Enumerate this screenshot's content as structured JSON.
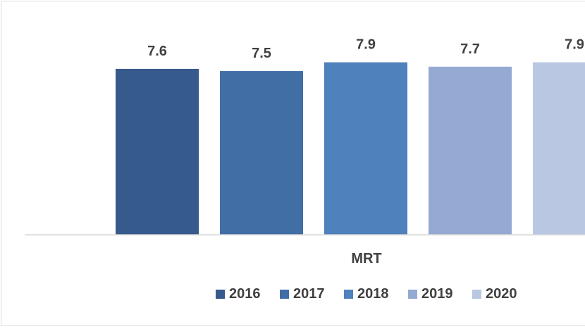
{
  "chart_data": {
    "type": "bar",
    "categories": [
      "MRT"
    ],
    "series": [
      {
        "name": "2016",
        "values": [
          7.6
        ],
        "color": "#375a8c"
      },
      {
        "name": "2017",
        "values": [
          7.5
        ],
        "color": "#426ea6"
      },
      {
        "name": "2018",
        "values": [
          7.9
        ],
        "color": "#4f81bd"
      },
      {
        "name": "2019",
        "values": [
          7.7
        ],
        "color": "#95aad2"
      },
      {
        "name": "2020",
        "values": [
          7.9
        ],
        "color": "#b9c7e2"
      }
    ],
    "data_labels": [
      "7.6",
      "7.5",
      "7.9",
      "7.7",
      "7.9"
    ],
    "ylim": [
      0,
      8.5
    ],
    "grid": false,
    "legend_position": "bottom"
  }
}
